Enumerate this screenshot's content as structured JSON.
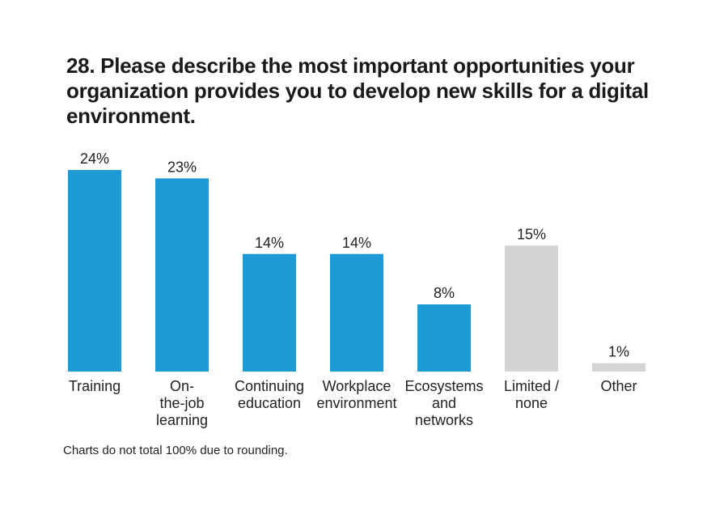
{
  "chart_data": {
    "type": "bar",
    "title": "28. Please describe the most important opportunities your organization provides you to develop new skills for a digital environment.",
    "categories": [
      [
        "Training"
      ],
      [
        "On-",
        "the-job",
        "learning"
      ],
      [
        "Continuing",
        "education"
      ],
      [
        "Workplace",
        "environment"
      ],
      [
        "Ecosystems",
        "and",
        "networks"
      ],
      [
        "Limited /",
        "none"
      ],
      [
        "Other"
      ]
    ],
    "values": [
      24,
      23,
      14,
      14,
      8,
      15,
      1
    ],
    "value_labels": [
      "24%",
      "23%",
      "14%",
      "14%",
      "8%",
      "15%",
      "1%"
    ],
    "bar_colors": [
      "#1b9ad6",
      "#1b9ad6",
      "#1b9ad6",
      "#1b9ad6",
      "#1b9ad6",
      "#d4d4d4",
      "#d4d4d4"
    ],
    "ylim": [
      0,
      24
    ],
    "xlabel": "",
    "ylabel": "",
    "grid": false,
    "legend": "none"
  },
  "note": "Charts do not total 100% due to rounding."
}
